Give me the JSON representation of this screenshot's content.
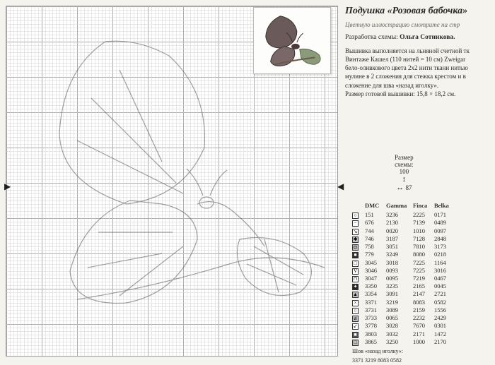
{
  "title": "Подушка «Розовая бабочка»",
  "subtitle": "Цветную иллюстрацию смотрите на стр",
  "designer_label": "Разработка схемы:",
  "designer_name": "Ольга Сотникова.",
  "description_lines": [
    "Вышивка выполняется на льняной счетной тк",
    "Винтаже Кашел (110 нитей = 10 см) Zweigar",
    "бело-оливкового цвета 2х2 нити ткани нитью",
    "мулине в 2 сложения для стежка крестом и в",
    "сложение для шва «назад иголку».",
    "Размер готовой вышивки: 15,8 × 18,2 см."
  ],
  "size_block": {
    "label": "Размер",
    "sublabel": "схемы:",
    "height": "100",
    "width": "87"
  },
  "thread_header": [
    "",
    "DMC",
    "Gamma",
    "Finca",
    "Belka"
  ],
  "threads": [
    {
      "sym": "○",
      "fill": "#ffffff",
      "dmc": "151",
      "gamma": "3236",
      "finca": "2225",
      "belka": "0171"
    },
    {
      "sym": "−",
      "fill": "#ffffff",
      "dmc": "676",
      "gamma": "2130",
      "finca": "7139",
      "belka": "0489"
    },
    {
      "sym": "↘",
      "fill": "#ffffff",
      "dmc": "744",
      "gamma": "0020",
      "finca": "1010",
      "belka": "0097"
    },
    {
      "sym": "✱",
      "fill": "#c0c0c0",
      "dmc": "746",
      "gamma": "3187",
      "finca": "7128",
      "belka": "2848"
    },
    {
      "sym": "◘",
      "fill": "#c0c0c0",
      "dmc": "758",
      "gamma": "3051",
      "finca": "7810",
      "belka": "3173"
    },
    {
      "sym": "■",
      "fill": "#2a2a2a",
      "dmc": "779",
      "gamma": "3249",
      "finca": "8080",
      "belka": "0218"
    },
    {
      "sym": "□",
      "fill": "#ffffff",
      "dmc": "3045",
      "gamma": "3018",
      "finca": "7225",
      "belka": "1164"
    },
    {
      "sym": "V",
      "fill": "#ffffff",
      "dmc": "3046",
      "gamma": "0093",
      "finca": "7225",
      "belka": "3016"
    },
    {
      "sym": "⊓",
      "fill": "#ffffff",
      "dmc": "3047",
      "gamma": "0095",
      "finca": "7219",
      "belka": "0467"
    },
    {
      "sym": "✦",
      "fill": "#2a2a2a",
      "dmc": "3350",
      "gamma": "3235",
      "finca": "2165",
      "belka": "0045"
    },
    {
      "sym": "▲",
      "fill": "#c0c0c0",
      "dmc": "3354",
      "gamma": "3091",
      "finca": "2147",
      "belka": "2721"
    },
    {
      "sym": "×",
      "fill": "#ffffff",
      "dmc": "3371",
      "gamma": "3219",
      "finca": "8083",
      "belka": "0582"
    },
    {
      "sym": "○",
      "fill": "#ffffff",
      "dmc": "3731",
      "gamma": "3089",
      "finca": "2159",
      "belka": "1556"
    },
    {
      "sym": "⌀",
      "fill": "#c0c0c0",
      "dmc": "3733",
      "gamma": "0065",
      "finca": "2232",
      "belka": "2429"
    },
    {
      "sym": "↙",
      "fill": "#ffffff",
      "dmc": "3778",
      "gamma": "3028",
      "finca": "7670",
      "belka": "0301"
    },
    {
      "sym": "■",
      "fill": "#555555",
      "dmc": "3803",
      "gamma": "3032",
      "finca": "2171",
      "belka": "1472"
    },
    {
      "sym": "□",
      "fill": "#c0c0c0",
      "dmc": "3865",
      "gamma": "3250",
      "finca": "1000",
      "belka": "2170"
    }
  ],
  "backstitch_label": "Шов «назад иголку»:",
  "backstitch_values": "3371  3219  8083  0582",
  "chart": {
    "grid_minor": 5,
    "grid_major": 50,
    "bg": "#ffffff",
    "minor_color": "#d0d0d0",
    "major_color": "#888888"
  }
}
